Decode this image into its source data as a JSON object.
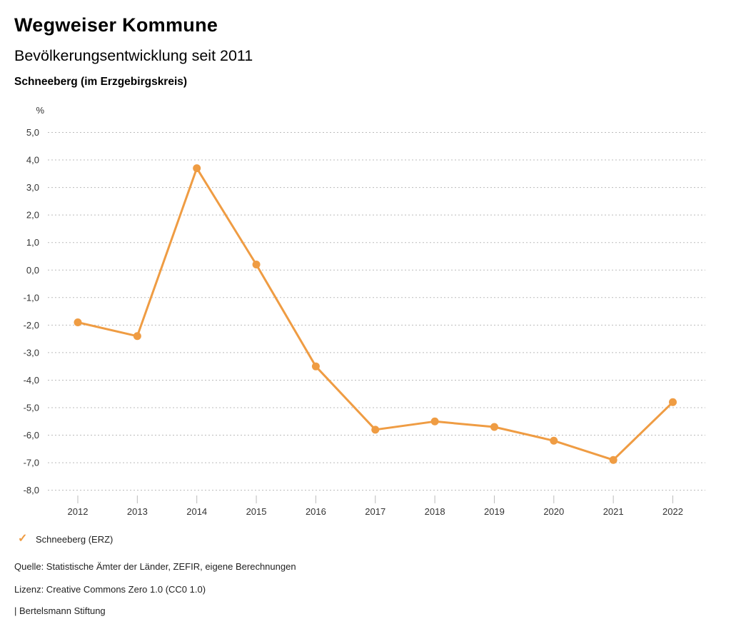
{
  "header": {
    "title": "Wegweiser Kommune",
    "subtitle": "Bevölkerungsentwicklung seit 2011",
    "region": "Schneeberg (im Erzgebirgskreis)"
  },
  "chart_data": {
    "type": "line",
    "title": "Bevölkerungsentwicklung seit 2011",
    "subtitle_region": "Schneeberg (im Erzgebirgskreis)",
    "unit_label": "%",
    "xlabel": "",
    "ylabel": "%",
    "categories": [
      "2012",
      "2013",
      "2014",
      "2015",
      "2016",
      "2017",
      "2018",
      "2019",
      "2020",
      "2021",
      "2022"
    ],
    "series": [
      {
        "name": "Schneeberg (ERZ)",
        "color": "#EF9C43",
        "values": [
          -1.9,
          -2.4,
          3.7,
          0.2,
          -3.5,
          -5.8,
          -5.5,
          -5.7,
          -6.2,
          -6.9,
          -4.8
        ]
      }
    ],
    "ylim": [
      -8.0,
      5.0
    ],
    "ytick_values": [
      5,
      4,
      3,
      2,
      1,
      0,
      -1,
      -2,
      -3,
      -4,
      -5,
      -6,
      -7,
      -8
    ],
    "ytick_labels": [
      "5,0",
      "4,0",
      "3,0",
      "2,0",
      "1,0",
      "0,0",
      "-1,0",
      "-2,0",
      "-3,0",
      "-4,0",
      "-5,0",
      "-6,0",
      "-7,0",
      "-8,0"
    ],
    "grid": "horizontal-dotted",
    "legend_position": "bottom-left",
    "marker": "circle"
  },
  "legend": {
    "check_icon": "✓",
    "label": "Schneeberg (ERZ)"
  },
  "footer": {
    "source": "Quelle: Statistische Ämter der Länder, ZEFIR, eigene Berechnungen",
    "license": "Lizenz: Creative Commons Zero 1.0 (CC0 1.0)",
    "attribution": "| Bertelsmann Stiftung"
  },
  "colors": {
    "accent": "#EF9C43",
    "grid_line": "#BBBBBB",
    "axis_tick": "#BBBBBB",
    "axis_text": "#333333",
    "title_text": "#000000",
    "footer_text": "#222222"
  }
}
